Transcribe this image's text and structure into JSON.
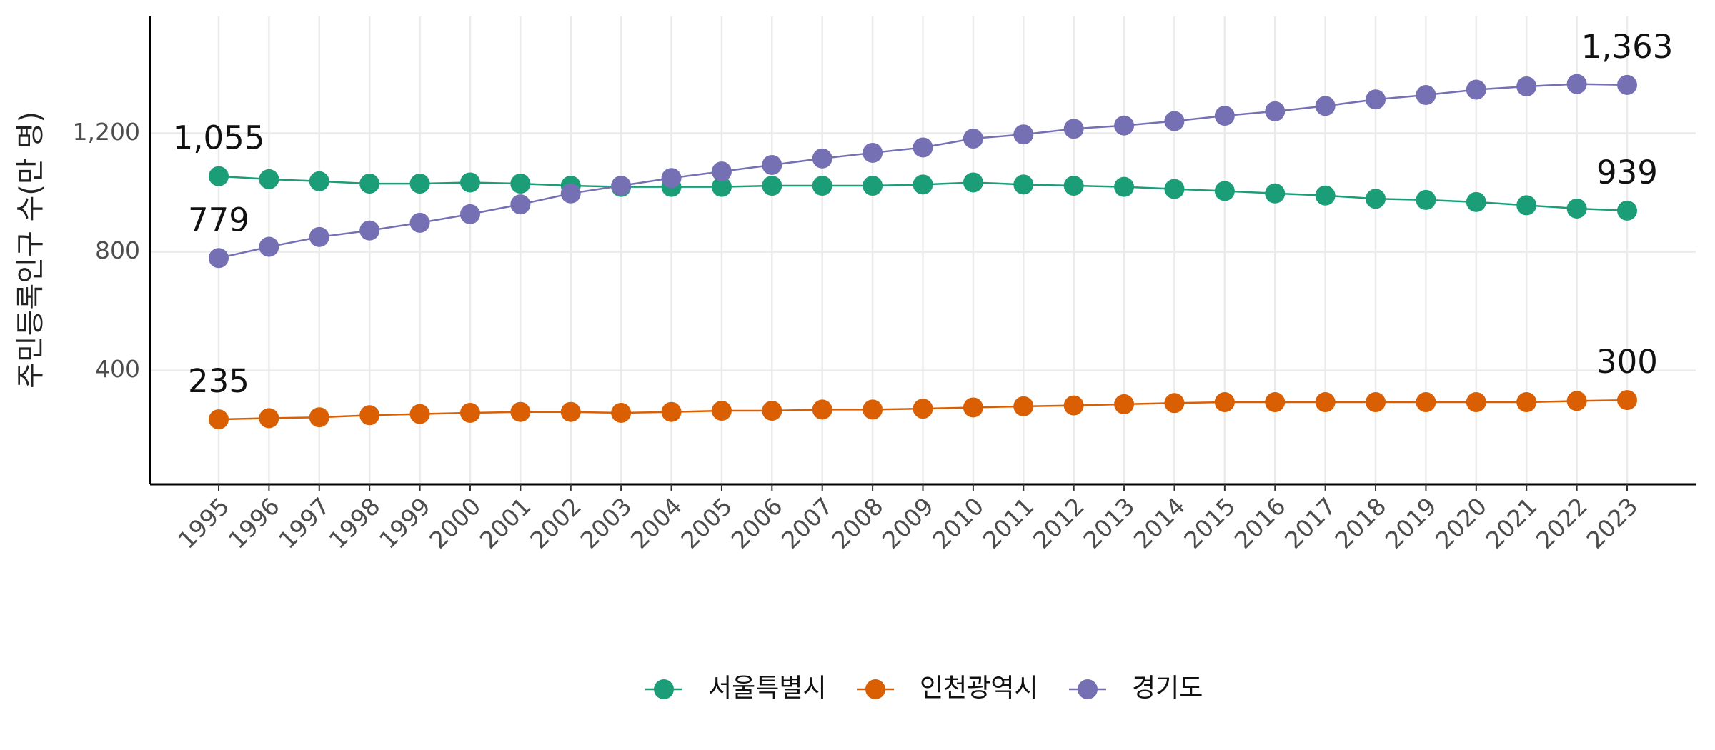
{
  "chart_data": {
    "type": "line",
    "y_label": "주민등록인구 수(만 명)",
    "categories": [
      "1995",
      "1996",
      "1997",
      "1998",
      "1999",
      "2000",
      "2001",
      "2002",
      "2003",
      "2004",
      "2005",
      "2006",
      "2007",
      "2008",
      "2009",
      "2010",
      "2011",
      "2012",
      "2013",
      "2014",
      "2015",
      "2016",
      "2017",
      "2018",
      "2019",
      "2020",
      "2021",
      "2022",
      "2023"
    ],
    "series": [
      {
        "name": "서울특별시",
        "color": "#1b9e77",
        "values": [
          1055,
          1045,
          1038,
          1030,
          1030,
          1034,
          1030,
          1023,
          1019,
          1019,
          1019,
          1023,
          1023,
          1023,
          1027,
          1034,
          1027,
          1023,
          1019,
          1012,
          1005,
          997,
          990,
          979,
          975,
          968,
          957,
          946,
          939
        ],
        "value_labels": [
          "1,055",
          null,
          null,
          null,
          null,
          null,
          null,
          null,
          null,
          null,
          null,
          null,
          null,
          null,
          null,
          null,
          null,
          null,
          null,
          null,
          null,
          null,
          null,
          null,
          null,
          null,
          null,
          null,
          "939"
        ]
      },
      {
        "name": "인천광역시",
        "color": "#d95f02",
        "values": [
          235,
          239,
          242,
          249,
          253,
          257,
          260,
          260,
          257,
          260,
          264,
          264,
          268,
          268,
          271,
          275,
          279,
          282,
          286,
          290,
          293,
          293,
          293,
          293,
          293,
          293,
          293,
          297,
          300
        ],
        "value_labels": [
          "235",
          null,
          null,
          null,
          null,
          null,
          null,
          null,
          null,
          null,
          null,
          null,
          null,
          null,
          null,
          null,
          null,
          null,
          null,
          null,
          null,
          null,
          null,
          null,
          null,
          null,
          null,
          null,
          "300"
        ]
      },
      {
        "name": "경기도",
        "color": "#7570b3",
        "values": [
          779,
          817,
          850,
          872,
          898,
          927,
          960,
          997,
          1023,
          1049,
          1071,
          1093,
          1115,
          1134,
          1152,
          1182,
          1196,
          1215,
          1226,
          1241,
          1259,
          1274,
          1292,
          1314,
          1329,
          1347,
          1358,
          1366,
          1363
        ],
        "value_labels": [
          "779",
          null,
          null,
          null,
          null,
          null,
          null,
          null,
          null,
          null,
          null,
          null,
          null,
          null,
          null,
          null,
          null,
          null,
          null,
          null,
          null,
          null,
          null,
          null,
          null,
          null,
          null,
          null,
          "1,363"
        ]
      }
    ],
    "ylim": [
      16,
      1594
    ],
    "yticks": [
      400,
      800,
      {
        "value": 1200,
        "label": "1,200"
      }
    ],
    "grid": true,
    "legend": "bottom"
  }
}
